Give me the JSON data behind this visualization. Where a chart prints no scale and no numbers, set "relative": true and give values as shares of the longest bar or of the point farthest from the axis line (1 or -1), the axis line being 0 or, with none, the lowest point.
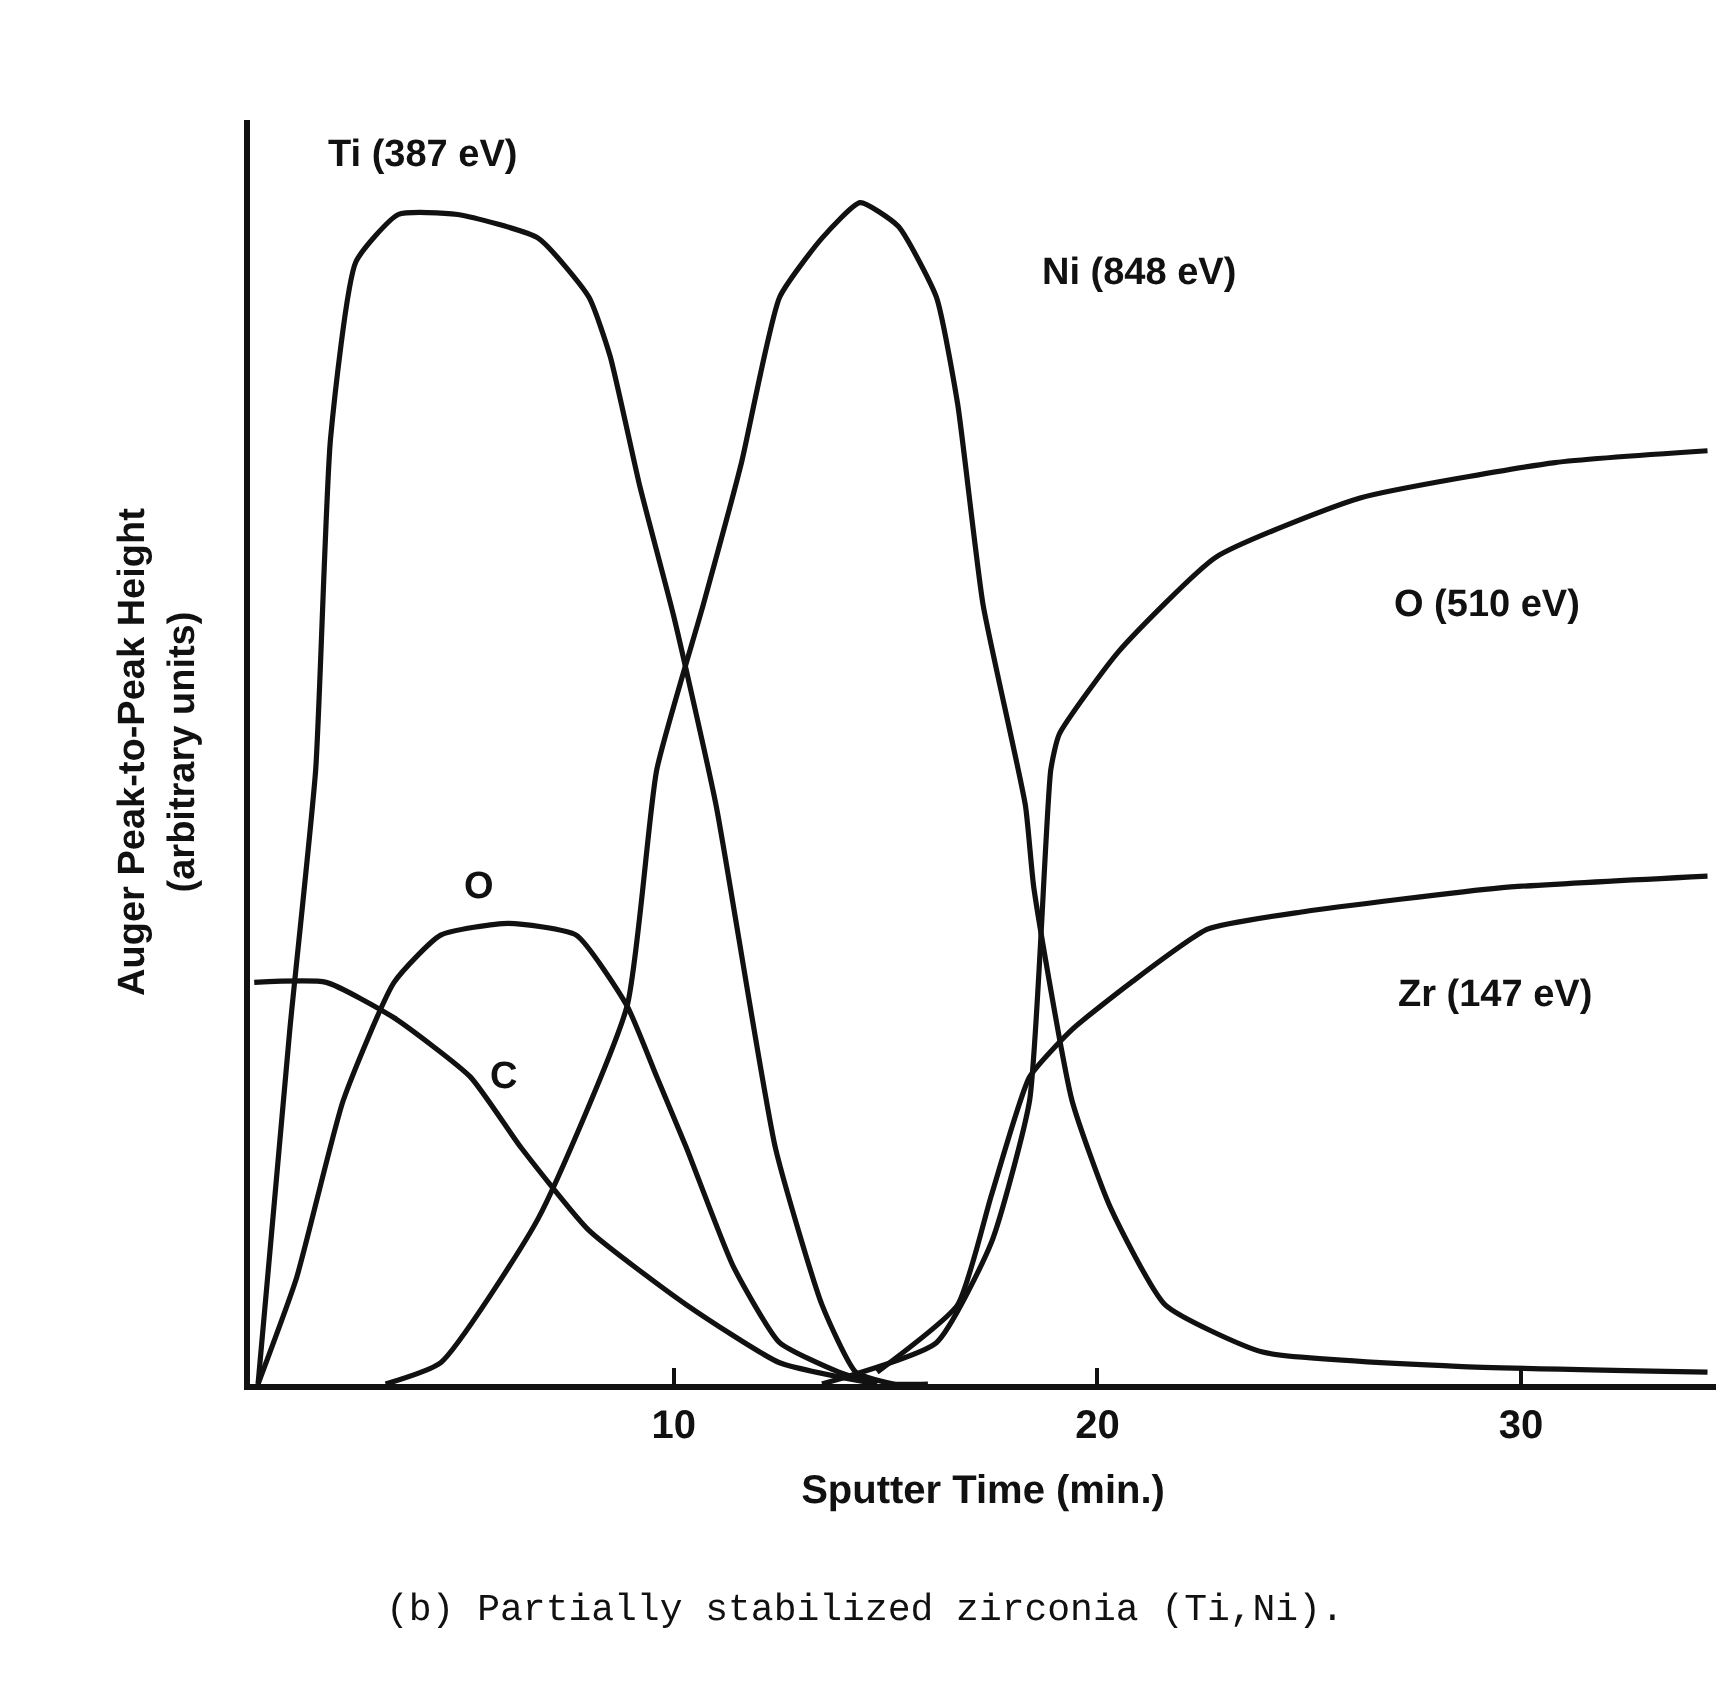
{
  "chart_data": {
    "type": "line",
    "relative": true,
    "xlabel": "Sputter Time (min.)",
    "ylabel": "Auger Peak-to-Peak Height\n(arbitrary units)",
    "xlim": [
      0,
      34.6
    ],
    "xticks": [
      10,
      20,
      30
    ],
    "legend": false,
    "marker": "none",
    "line_style": "solid",
    "annotations": [
      "(b) Partially stabilized zirconia (Ti,Ni)."
    ],
    "series": [
      {
        "name": "Ti (387 eV)",
        "color": "#111111",
        "x": [
          0.19,
          0.94,
          1.55,
          1.9,
          2.5,
          3.5,
          4.9,
          6.8,
          8.0,
          8.5,
          9.2,
          10.0,
          11.0,
          12.4,
          13.5,
          14.3,
          15.2,
          16.0
        ],
        "values": [
          0,
          0.3,
          0.52,
          0.8,
          0.95,
          0.99,
          0.99,
          0.97,
          0.92,
          0.87,
          0.76,
          0.65,
          0.49,
          0.2,
          0.067,
          0.01,
          0,
          0
        ]
      },
      {
        "name": "Ni (848 eV)",
        "color": "#111111",
        "x": [
          3.2,
          4.5,
          6.8,
          8.9,
          9.6,
          10.7,
          11.6,
          12.5,
          13.5,
          14.4,
          15.3,
          16.2,
          16.7,
          17.3,
          18.3,
          18.5,
          19.4,
          20.3,
          21.6,
          23.9,
          28.5,
          34.4
        ],
        "values": [
          0,
          0.018,
          0.14,
          0.32,
          0.52,
          0.66,
          0.78,
          0.92,
          0.97,
          1.0,
          0.98,
          0.92,
          0.83,
          0.66,
          0.49,
          0.42,
          0.24,
          0.15,
          0.067,
          0.027,
          0.015,
          0.01
        ]
      },
      {
        "name": "O (510 eV)",
        "color": "#111111",
        "x": [
          13.5,
          16.2,
          17.5,
          18.4,
          18.9,
          19.1,
          20.5,
          22.8,
          26.2,
          30.8,
          34.4
        ],
        "values": [
          0,
          0.035,
          0.12,
          0.24,
          0.52,
          0.55,
          0.62,
          0.7,
          0.75,
          0.78,
          0.79
        ]
      },
      {
        "name": "Zr (147 eV)",
        "color": "#111111",
        "x": [
          14.8,
          16.7,
          17.5,
          18.4,
          19.4,
          20.8,
          22.6,
          24.9,
          29.5,
          34.4
        ],
        "values": [
          0.01,
          0.067,
          0.16,
          0.26,
          0.3,
          0.34,
          0.385,
          0.4,
          0.42,
          0.43
        ]
      },
      {
        "name": "O",
        "color": "#111111",
        "x": [
          0.19,
          1.1,
          2.2,
          3.4,
          4.5,
          6.1,
          7.7,
          8.9,
          9.6,
          10.3,
          11.4,
          12.5,
          13.9,
          14.8
        ],
        "values": [
          0,
          0.09,
          0.24,
          0.34,
          0.38,
          0.39,
          0.38,
          0.32,
          0.26,
          0.2,
          0.1,
          0.035,
          0.01,
          0
        ]
      },
      {
        "name": "C",
        "color": "#111111",
        "x": [
          0.1,
          1.8,
          3.4,
          5.2,
          6.4,
          8.0,
          10.3,
          12.5,
          14.8
        ],
        "values": [
          0.34,
          0.34,
          0.31,
          0.26,
          0.2,
          0.13,
          0.067,
          0.018,
          0
        ]
      }
    ]
  }
}
